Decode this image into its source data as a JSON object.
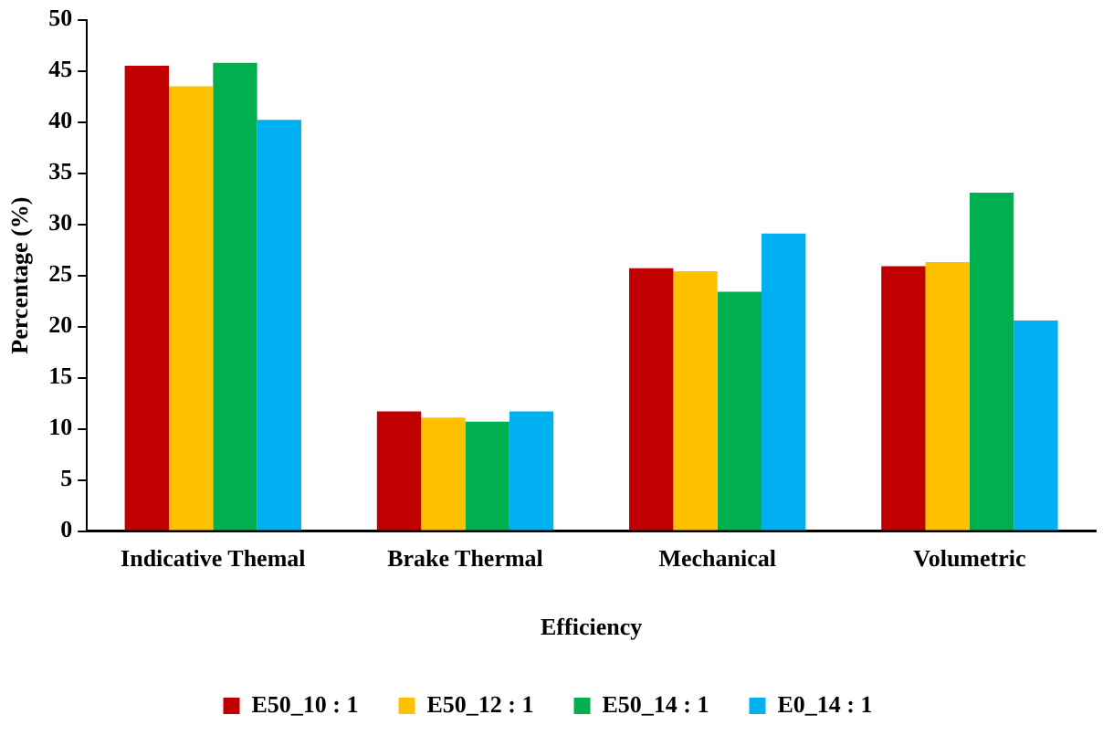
{
  "chart_data": {
    "type": "bar",
    "xlabel": "Efficiency",
    "ylabel": "Percentage (%)",
    "categories": [
      "Indicative Themal",
      "Brake Thermal",
      "Mechanical",
      "Volumetric"
    ],
    "series": [
      {
        "name": "E50_10 : 1",
        "color": "#c00000",
        "values": [
          45.5,
          11.7,
          25.7,
          25.9
        ]
      },
      {
        "name": "E50_12 : 1",
        "color": "#ffc000",
        "values": [
          43.5,
          11.1,
          25.4,
          26.3
        ]
      },
      {
        "name": "E50_14 : 1",
        "color": "#00b050",
        "values": [
          45.8,
          10.7,
          23.4,
          33.1
        ]
      },
      {
        "name": "E0_14 : 1",
        "color": "#00b0f0",
        "values": [
          40.2,
          11.7,
          29.1,
          20.6
        ]
      }
    ],
    "ylim": [
      0,
      50
    ],
    "yticks": [
      0,
      5,
      10,
      15,
      20,
      25,
      30,
      35,
      40,
      45,
      50
    ],
    "grid": false,
    "legend": "bottom"
  }
}
